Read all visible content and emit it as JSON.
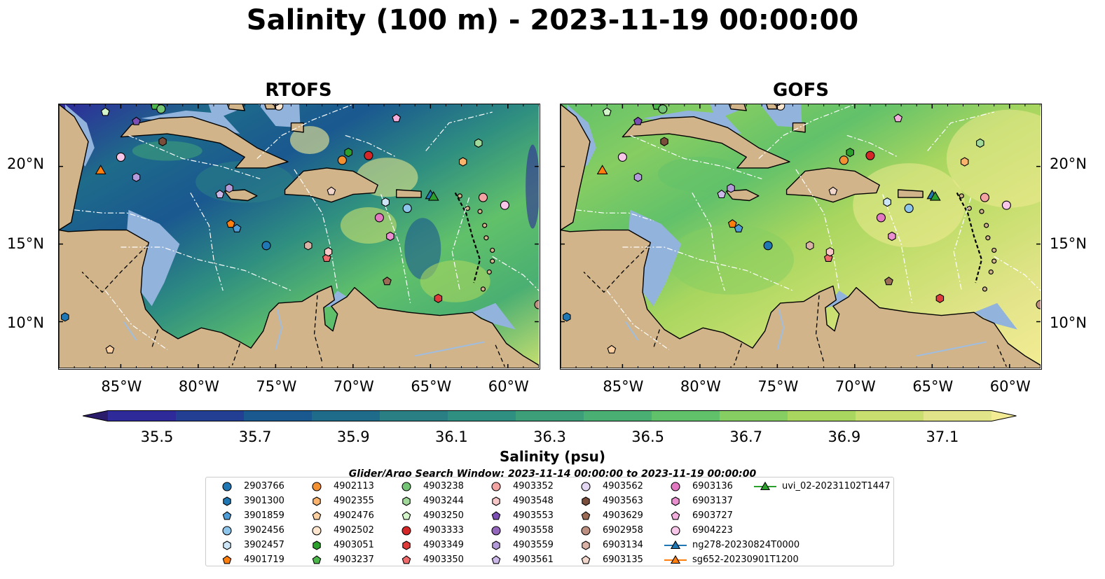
{
  "title": "Salinity (100 m) - 2023-11-19 00:00:00",
  "chart_data": {
    "type": "heatmap",
    "panels": [
      {
        "name": "RTOFS"
      },
      {
        "name": "GOFS"
      }
    ],
    "lon_ticks": [
      "85°W",
      "80°W",
      "75°W",
      "70°W",
      "65°W",
      "60°W"
    ],
    "lat_ticks": [
      "20°N",
      "15°N",
      "10°N"
    ],
    "extent": {
      "lon": [
        -89,
        -58
      ],
      "lat": [
        7,
        24
      ]
    },
    "colorbar": {
      "label": "Salinity (psu)",
      "range": [
        35.4,
        37.2
      ],
      "ticks": [
        "35.5",
        "35.7",
        "35.9",
        "36.1",
        "36.3",
        "36.5",
        "36.7",
        "36.9",
        "37.1"
      ],
      "colors": [
        "#2b1b6b",
        "#2e2a9a",
        "#223f93",
        "#1a5890",
        "#1e6b8a",
        "#2a7f85",
        "#2f8f80",
        "#3d9e7a",
        "#4aaf72",
        "#61c16a",
        "#86cd62",
        "#a8d65f",
        "#c8df70",
        "#e2e489",
        "#f3ec94"
      ]
    },
    "search_window": "Glider/Argo Search Window: 2023-11-14 00:00:00 to 2023-11-19 00:00:00"
  },
  "legend": [
    {
      "label": "2903766",
      "marker": "circle",
      "color": "#1f77b4"
    },
    {
      "label": "3901300",
      "marker": "hexagon",
      "color": "#1f77b4"
    },
    {
      "label": "3901859",
      "marker": "pentagon",
      "color": "#4e9dd6"
    },
    {
      "label": "3902456",
      "marker": "circle",
      "color": "#8ec5ea"
    },
    {
      "label": "3902457",
      "marker": "hexagon",
      "color": "#cde6f7"
    },
    {
      "label": "4901719",
      "marker": "pentagon",
      "color": "#ff7f0e"
    },
    {
      "label": "4902113",
      "marker": "circle",
      "color": "#f39132"
    },
    {
      "label": "4902355",
      "marker": "hexagon",
      "color": "#fbb46e"
    },
    {
      "label": "4902476",
      "marker": "pentagon",
      "color": "#fdd0a2"
    },
    {
      "label": "4902502",
      "marker": "circle",
      "color": "#fee6ce"
    },
    {
      "label": "4903051",
      "marker": "hexagon",
      "color": "#2ca02c"
    },
    {
      "label": "4903237",
      "marker": "pentagon",
      "color": "#4cb84c"
    },
    {
      "label": "4903238",
      "marker": "circle",
      "color": "#74c476"
    },
    {
      "label": "4903244",
      "marker": "hexagon",
      "color": "#a1d99b"
    },
    {
      "label": "4903250",
      "marker": "pentagon",
      "color": "#d4f5c9"
    },
    {
      "label": "4903333",
      "marker": "circle",
      "color": "#d62728"
    },
    {
      "label": "4903349",
      "marker": "hexagon",
      "color": "#e03b3b"
    },
    {
      "label": "4903350",
      "marker": "pentagon",
      "color": "#ef6b6b"
    },
    {
      "label": "4903352",
      "marker": "circle",
      "color": "#f4a3a3"
    },
    {
      "label": "4903548",
      "marker": "hexagon",
      "color": "#f8c8c8"
    },
    {
      "label": "4903553",
      "marker": "pentagon",
      "color": "#7b4fb3"
    },
    {
      "label": "4903558",
      "marker": "circle",
      "color": "#9467bd"
    },
    {
      "label": "4903559",
      "marker": "hexagon",
      "color": "#b39ad8"
    },
    {
      "label": "4903561",
      "marker": "pentagon",
      "color": "#cbb7e8"
    },
    {
      "label": "4903562",
      "marker": "circle",
      "color": "#e3d7f3"
    },
    {
      "label": "4903563",
      "marker": "hexagon",
      "color": "#7a4e3a"
    },
    {
      "label": "4903629",
      "marker": "pentagon",
      "color": "#9c6b55"
    },
    {
      "label": "6902958",
      "marker": "circle",
      "color": "#bc8f80"
    },
    {
      "label": "6903134",
      "marker": "hexagon",
      "color": "#dbb3a6"
    },
    {
      "label": "6903135",
      "marker": "pentagon",
      "color": "#f1d6cb"
    },
    {
      "label": "6903136",
      "marker": "circle",
      "color": "#e377c2"
    },
    {
      "label": "6903137",
      "marker": "hexagon",
      "color": "#ea8fcf"
    },
    {
      "label": "6903727",
      "marker": "pentagon",
      "color": "#f3aede"
    },
    {
      "label": "6904223",
      "marker": "circle",
      "color": "#f7c6e8"
    },
    {
      "label": "ng278-20230824T0000",
      "marker": "triangle-line",
      "color": "#1f77b4"
    },
    {
      "label": "sg652-20230901T1200",
      "marker": "triangle-line",
      "color": "#ff7f0e"
    },
    {
      "label": "uvi_02-20231102T1447",
      "marker": "triangle-line",
      "color": "#2ca02c"
    }
  ],
  "floats": [
    {
      "label": "2903766",
      "lon": -75.6,
      "lat": 14.9
    },
    {
      "label": "3901300",
      "lon": -88.6,
      "lat": 10.3
    },
    {
      "label": "3901859",
      "lon": -77.5,
      "lat": 16.0
    },
    {
      "label": "3902456",
      "lon": -66.5,
      "lat": 17.3
    },
    {
      "label": "3902457",
      "lon": -67.9,
      "lat": 17.7
    },
    {
      "label": "4901719",
      "lon": -77.9,
      "lat": 16.3
    },
    {
      "label": "4902113",
      "lon": -70.7,
      "lat": 20.4
    },
    {
      "label": "4902355",
      "lon": -62.9,
      "lat": 20.3
    },
    {
      "label": "4902476",
      "lon": -85.7,
      "lat": 8.2
    },
    {
      "label": "4902502",
      "lon": -74.8,
      "lat": 23.9
    },
    {
      "label": "4903051",
      "lon": -70.3,
      "lat": 20.9
    },
    {
      "label": "4903237",
      "lon": -82.8,
      "lat": 23.9
    },
    {
      "label": "4903238",
      "lon": -82.4,
      "lat": 23.7
    },
    {
      "label": "4903244",
      "lon": -61.9,
      "lat": 21.5
    },
    {
      "label": "4903250",
      "lon": -86.0,
      "lat": 23.5
    },
    {
      "label": "4903333",
      "lon": -69.0,
      "lat": 20.7
    },
    {
      "label": "4903349",
      "lon": -64.5,
      "lat": 11.5
    },
    {
      "label": "4903350",
      "lon": -71.7,
      "lat": 14.1
    },
    {
      "label": "4903352",
      "lon": -61.6,
      "lat": 18.0
    },
    {
      "label": "4903548",
      "lon": -71.6,
      "lat": 14.5
    },
    {
      "label": "4903553",
      "lon": -84.0,
      "lat": 22.9
    },
    {
      "label": "4903558",
      "lon": -86.8,
      "lat": 24.3
    },
    {
      "label": "4903559",
      "lon": -84.0,
      "lat": 19.3
    },
    {
      "label": "4903561",
      "lon": -78.6,
      "lat": 18.2
    },
    {
      "label": "4903562",
      "lon": -75.0,
      "lat": 24.2
    },
    {
      "label": "4903563",
      "lon": -82.3,
      "lat": 21.6
    },
    {
      "label": "4903629",
      "lon": -67.8,
      "lat": 12.6
    },
    {
      "label": "6902958",
      "lon": -58.0,
      "lat": 11.1
    },
    {
      "label": "6903134",
      "lon": -72.9,
      "lat": 14.9
    },
    {
      "label": "6903135",
      "lon": -71.4,
      "lat": 18.4
    },
    {
      "label": "6903136",
      "lon": -68.3,
      "lat": 16.7
    },
    {
      "label": "6903137",
      "lon": -67.6,
      "lat": 15.5
    },
    {
      "label": "6903727",
      "lon": -67.2,
      "lat": 23.1
    },
    {
      "label": "6904223",
      "lon": -60.2,
      "lat": 17.5
    },
    {
      "label": "6904223",
      "lon": -85.0,
      "lat": 20.6
    },
    {
      "label": "4903559",
      "lon": -78.0,
      "lat": 18.6
    }
  ],
  "gliders": [
    {
      "label": "ng278-20230824T0000",
      "lon": -65.0,
      "lat": 18.1
    },
    {
      "label": "sg652-20230901T1200",
      "lon": -86.3,
      "lat": 19.7
    },
    {
      "label": "uvi_02-20231102T1447",
      "lon": -64.8,
      "lat": 18.0
    }
  ]
}
